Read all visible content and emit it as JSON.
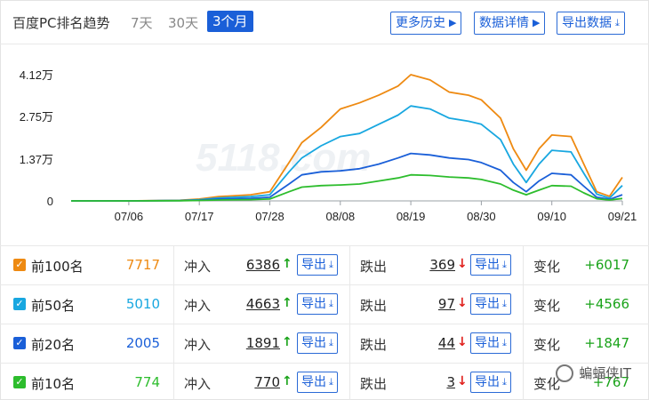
{
  "header": {
    "title": "百度PC排名趋势",
    "ranges": [
      "7天",
      "30天",
      "3个月"
    ],
    "active_range": "3个月",
    "buttons": {
      "history": "更多历史",
      "details": "数据详情",
      "export": "导出数据"
    }
  },
  "chart_data": {
    "type": "line",
    "title": "",
    "xlabel": "",
    "ylabel": "",
    "y_tick_labels": [
      "4.12万",
      "2.75万",
      "1.37万",
      "0"
    ],
    "y_ticks": [
      41200,
      27500,
      13700,
      0
    ],
    "ylim": [
      0,
      41200
    ],
    "x_tick_labels": [
      "07/06",
      "07/17",
      "07/28",
      "08/08",
      "08/19",
      "08/30",
      "09/10",
      "09/21"
    ],
    "x_start": "06/27",
    "x_end": "09/21",
    "grid": false,
    "legend": "none",
    "x": [
      "06/27",
      "07/06",
      "07/14",
      "07/17",
      "07/20",
      "07/25",
      "07/28",
      "07/31",
      "08/02",
      "08/05",
      "08/08",
      "08/11",
      "08/14",
      "08/17",
      "08/19",
      "08/22",
      "08/25",
      "08/28",
      "08/30",
      "09/02",
      "09/04",
      "09/06",
      "09/08",
      "09/10",
      "09/13",
      "09/15",
      "09/17",
      "09/19",
      "09/21"
    ],
    "series": [
      {
        "name": "前100名",
        "color": "#ee8a12",
        "values": [
          0,
          0,
          200,
          600,
          1400,
          2000,
          3000,
          12500,
          19000,
          24000,
          30000,
          32000,
          34500,
          37500,
          41200,
          39500,
          35500,
          34500,
          33000,
          27000,
          17000,
          10000,
          17000,
          21500,
          21000,
          12000,
          3000,
          1500,
          7700
        ]
      },
      {
        "name": "前50名",
        "color": "#18a7e0",
        "values": [
          0,
          0,
          150,
          400,
          1000,
          1400,
          2000,
          9500,
          14000,
          18000,
          21000,
          22000,
          25000,
          28000,
          31000,
          30000,
          27000,
          26000,
          25000,
          20000,
          12000,
          6000,
          12000,
          16500,
          16000,
          9000,
          2200,
          900,
          5010
        ]
      },
      {
        "name": "前20名",
        "color": "#1a5fd8",
        "values": [
          0,
          0,
          100,
          250,
          600,
          800,
          1200,
          5500,
          8500,
          9500,
          9800,
          10500,
          12000,
          14000,
          15500,
          15000,
          14000,
          13500,
          12500,
          10000,
          6000,
          3000,
          6500,
          9000,
          8500,
          4800,
          1200,
          500,
          2005
        ]
      },
      {
        "name": "前10名",
        "color": "#2dbd2d",
        "values": [
          0,
          0,
          50,
          150,
          300,
          400,
          600,
          3000,
          4500,
          5000,
          5200,
          5500,
          6500,
          7500,
          8500,
          8300,
          7800,
          7500,
          7000,
          5500,
          3500,
          2000,
          3500,
          5000,
          4800,
          2600,
          700,
          300,
          774
        ]
      }
    ]
  },
  "watermark_chart": "5118.com",
  "rows": [
    {
      "name": "前100名",
      "color": "#ee8a12",
      "value": "7717",
      "in_label": "冲入",
      "in_num": "6386",
      "out_label": "跌出",
      "out_num": "369",
      "chg_label": "变化",
      "chg": "+6017",
      "export": "导出"
    },
    {
      "name": "前50名",
      "color": "#18a7e0",
      "value": "5010",
      "in_label": "冲入",
      "in_num": "4663",
      "out_label": "跌出",
      "out_num": "97",
      "chg_label": "变化",
      "chg": "+4566",
      "export": "导出"
    },
    {
      "name": "前20名",
      "color": "#1a5fd8",
      "value": "2005",
      "in_label": "冲入",
      "in_num": "1891",
      "out_label": "跌出",
      "out_num": "44",
      "chg_label": "变化",
      "chg": "+1847",
      "export": "导出"
    },
    {
      "name": "前10名",
      "color": "#2dbd2d",
      "value": "774",
      "in_label": "冲入",
      "in_num": "770",
      "out_label": "跌出",
      "out_num": "3",
      "chg_label": "变化",
      "chg": "+767",
      "export": "导出"
    }
  ],
  "watermark": "蝙蝠侠IT",
  "icons": {
    "check": "check-icon",
    "arrow_up": "arrow-up-icon",
    "arrow_down": "arrow-down-icon",
    "download": "download-icon",
    "caret_right": "caret-right-icon"
  },
  "colors": {
    "accent": "#1a5fd8",
    "up": "#1aa31a",
    "down": "#e0201c"
  }
}
